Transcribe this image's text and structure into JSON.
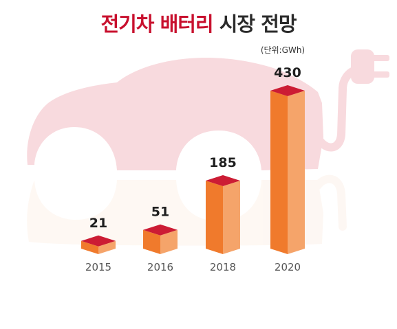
{
  "title": {
    "accent": "전기차 배터리",
    "rest": "시장 전망"
  },
  "colors": {
    "accent": "#c8102e",
    "bar_front": "#f07a2c",
    "bar_side": "#f5a46a",
    "bar_top": "#cc1c34",
    "car_silhouette": "#f8dade"
  },
  "icons": [
    "electric-car-silhouette-icon",
    "power-plug-icon"
  ],
  "chart_data": {
    "type": "bar",
    "title": "전기차 배터리 시장 전망",
    "unit_label": "(단위:GWh)",
    "categories": [
      "2015",
      "2016",
      "2018",
      "2020"
    ],
    "values": [
      21,
      51,
      185,
      430
    ],
    "ylim": [
      0,
      430
    ],
    "grid": false,
    "legend": "none"
  }
}
